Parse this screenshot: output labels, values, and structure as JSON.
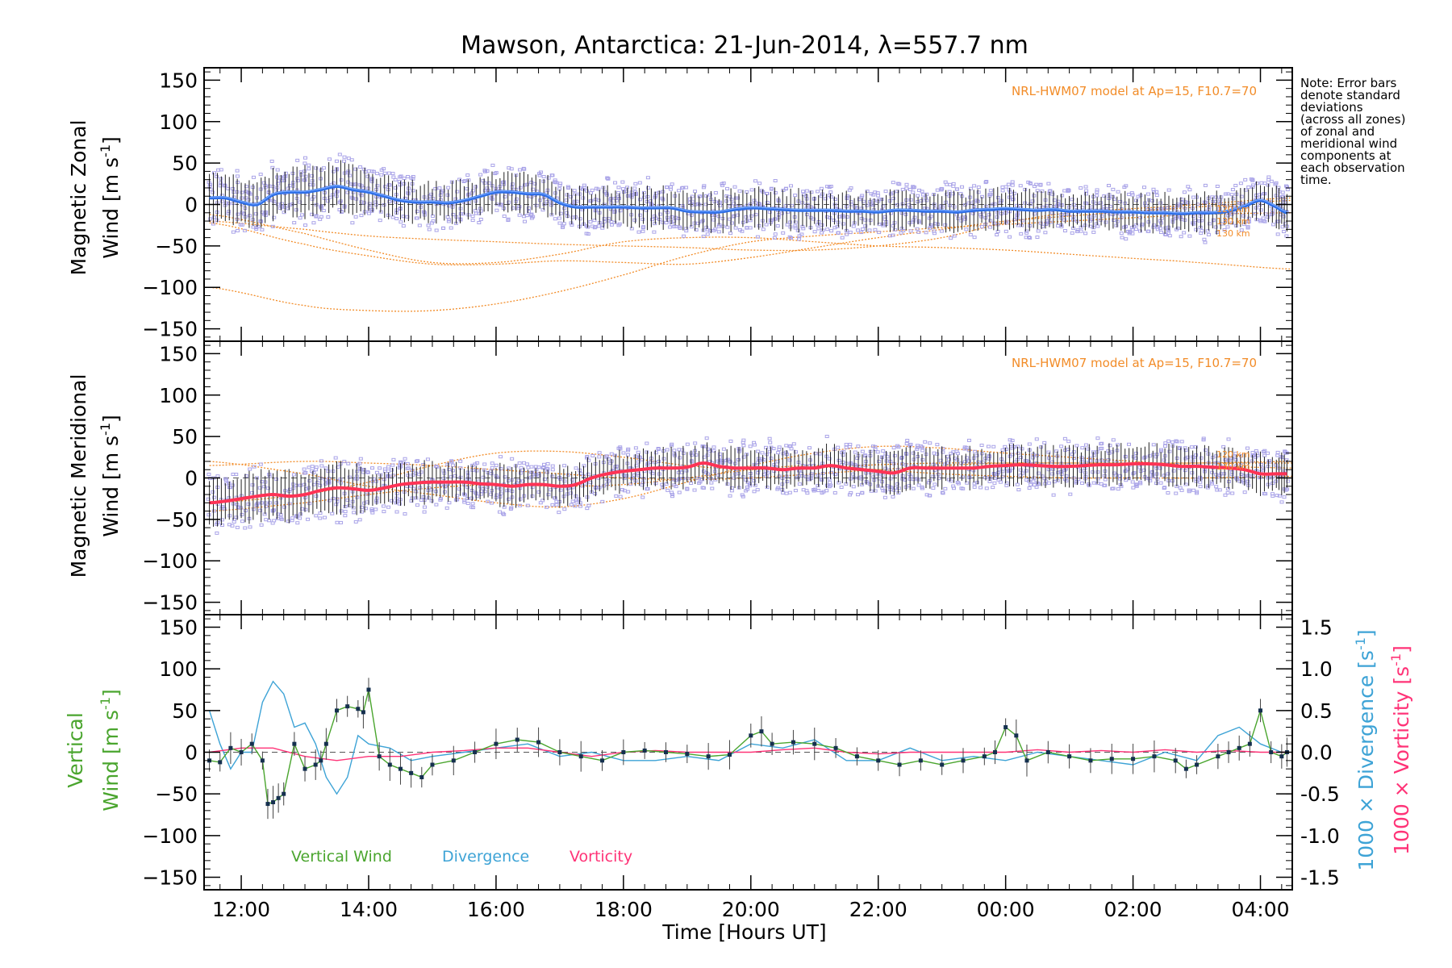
{
  "colors": {
    "zonal": "#2f6fe8",
    "zonal_light": "#7aa9ff",
    "meridional": "#ff3355",
    "model": "#f28c28",
    "scatter": "#a9a3e8",
    "vertical": "#4aa52e",
    "divergence": "#3da3d6",
    "vorticity": "#ff3377",
    "marker": "#15304f"
  },
  "chart_data": [
    {
      "type": "line",
      "title": "Mawson, Antarctica: 21-Jun-2014, λ=557.7 nm",
      "ylabel_line1": "Magnetic Zonal",
      "ylabel_line2": "Wind [m s",
      "ylabel_sup": "-1",
      "ylabel_close": "]",
      "ylim": [
        -165,
        165
      ],
      "yticks": [
        150,
        100,
        50,
        0,
        -50,
        -100,
        -150
      ],
      "xlim": [
        "2014-06-21T11:25",
        "2014-06-22T04:30"
      ],
      "model_label": "NRL-HWM07 model at Ap=15, F10.7=70",
      "altitude_labels": [
        "120 km",
        "130 km",
        "130 km"
      ],
      "series": [
        {
          "role": "mean_wind",
          "x": [
            "11:30",
            "11:45",
            "12:00",
            "12:15",
            "12:30",
            "12:45",
            "13:00",
            "13:15",
            "13:30",
            "13:45",
            "14:00",
            "14:15",
            "14:30",
            "14:45",
            "15:00",
            "15:15",
            "15:30",
            "15:45",
            "16:00",
            "16:15",
            "16:30",
            "16:45",
            "17:00",
            "17:15",
            "17:30",
            "17:45",
            "18:00",
            "18:15",
            "18:30",
            "18:45",
            "19:00",
            "19:15",
            "19:30",
            "19:45",
            "20:00",
            "20:15",
            "20:30",
            "20:45",
            "21:00",
            "21:15",
            "21:30",
            "21:45",
            "22:00",
            "22:15",
            "22:30",
            "22:45",
            "23:00",
            "23:15",
            "23:30",
            "23:45",
            "00:00",
            "00:15",
            "00:30",
            "00:45",
            "01:00",
            "01:15",
            "01:30",
            "01:45",
            "02:00",
            "02:15",
            "02:30",
            "02:45",
            "03:00",
            "03:15",
            "03:30",
            "03:45",
            "04:00",
            "04:15",
            "04:25"
          ],
          "y": [
            8,
            8,
            3,
            0,
            12,
            15,
            15,
            18,
            22,
            18,
            15,
            10,
            5,
            3,
            3,
            2,
            5,
            10,
            15,
            15,
            13,
            12,
            2,
            -3,
            -3,
            -3,
            -3,
            -4,
            -4,
            -4,
            -8,
            -9,
            -9,
            -6,
            -4,
            -5,
            -6,
            -7,
            -7,
            -7,
            -8,
            -8,
            -9,
            -7,
            -7,
            -8,
            -8,
            -9,
            -7,
            -6,
            -5,
            -6,
            -7,
            -6,
            -8,
            -8,
            -8,
            -9,
            -9,
            -10,
            -10,
            -11,
            -10,
            -10,
            -8,
            -2,
            5,
            -3,
            -10
          ]
        },
        {
          "role": "model_curves",
          "x": [
            "11:30",
            "13:00",
            "14:00",
            "15:00",
            "16:00",
            "17:00",
            "18:00",
            "19:00",
            "20:00",
            "21:00",
            "22:00",
            "23:00",
            "00:00",
            "01:00",
            "02:00",
            "03:00",
            "04:30"
          ],
          "curves": [
            {
              "y": [
                -20,
                -30,
                -38,
                -42,
                -45,
                -48,
                -50,
                -52,
                -55,
                -55,
                -50,
                -40,
                -22,
                -10,
                -5,
                0,
                8
              ]
            },
            {
              "y": [
                -12,
                -35,
                -55,
                -70,
                -70,
                -60,
                -45,
                -40,
                -40,
                -45,
                -50,
                -52,
                -55,
                -60,
                -65,
                -70,
                -78
              ]
            },
            {
              "y": [
                -22,
                -48,
                -62,
                -72,
                -72,
                -68,
                -70,
                -72,
                -64,
                -52,
                -40,
                -30,
                -20,
                -14,
                -8,
                -3,
                5
              ]
            },
            {
              "y": [
                -100,
                -122,
                -128,
                -128,
                -120,
                -105,
                -85,
                -62,
                -45,
                -38,
                -33,
                -28,
                -24,
                -20,
                -16,
                -12,
                -10
              ]
            }
          ]
        }
      ]
    },
    {
      "type": "line",
      "ylabel_line1": "Magnetic Meridional",
      "ylabel_line2": "Wind [m s",
      "ylabel_sup": "-1",
      "ylabel_close": "]",
      "ylim": [
        -165,
        165
      ],
      "yticks": [
        150,
        100,
        50,
        0,
        -50,
        -100,
        -150
      ],
      "model_label": "NRL-HWM07 model at Ap=15, F10.7=70",
      "altitude_labels": [
        "120 km",
        "130 km"
      ],
      "series": [
        {
          "role": "mean_wind",
          "x": [
            "11:30",
            "11:45",
            "12:00",
            "12:15",
            "12:30",
            "12:45",
            "13:00",
            "13:15",
            "13:30",
            "13:45",
            "14:00",
            "14:15",
            "14:30",
            "14:45",
            "15:00",
            "15:15",
            "15:30",
            "15:45",
            "16:00",
            "16:15",
            "16:30",
            "16:45",
            "17:00",
            "17:15",
            "17:30",
            "17:45",
            "18:00",
            "18:15",
            "18:30",
            "18:45",
            "19:00",
            "19:15",
            "19:30",
            "19:45",
            "20:00",
            "20:15",
            "20:30",
            "20:45",
            "21:00",
            "21:15",
            "21:30",
            "21:45",
            "22:00",
            "22:15",
            "22:30",
            "22:45",
            "23:00",
            "23:15",
            "23:30",
            "23:45",
            "00:00",
            "00:15",
            "00:30",
            "00:45",
            "01:00",
            "01:15",
            "01:30",
            "01:45",
            "02:00",
            "02:15",
            "02:30",
            "02:45",
            "03:00",
            "03:15",
            "03:30",
            "03:45",
            "04:00",
            "04:15",
            "04:25"
          ],
          "y": [
            -30,
            -28,
            -25,
            -22,
            -20,
            -22,
            -20,
            -15,
            -12,
            -13,
            -15,
            -12,
            -8,
            -6,
            -5,
            -5,
            -5,
            -7,
            -8,
            -10,
            -8,
            -8,
            -10,
            -8,
            0,
            5,
            8,
            10,
            12,
            12,
            13,
            18,
            14,
            12,
            12,
            12,
            10,
            12,
            12,
            15,
            12,
            10,
            8,
            6,
            12,
            12,
            12,
            12,
            12,
            14,
            15,
            16,
            15,
            14,
            14,
            15,
            16,
            16,
            17,
            17,
            16,
            14,
            14,
            13,
            12,
            10,
            5,
            5,
            5
          ]
        },
        {
          "role": "model_curves",
          "x": [
            "11:30",
            "13:00",
            "14:00",
            "15:00",
            "16:00",
            "17:00",
            "18:00",
            "19:00",
            "20:00",
            "21:00",
            "22:00",
            "23:00",
            "00:00",
            "01:00",
            "02:00",
            "03:00",
            "04:30"
          ],
          "curves": [
            {
              "y": [
                -30,
                -20,
                -5,
                15,
                30,
                32,
                25,
                15,
                10,
                12,
                16,
                18,
                18,
                18,
                18,
                18,
                18
              ]
            },
            {
              "y": [
                15,
                20,
                18,
                15,
                10,
                5,
                0,
                -2,
                0,
                5,
                10,
                15,
                18,
                18,
                18,
                18,
                20
              ]
            },
            {
              "y": [
                20,
                5,
                -10,
                -20,
                -30,
                -35,
                -25,
                -5,
                15,
                30,
                38,
                36,
                30,
                25,
                20,
                15,
                12
              ]
            },
            {
              "y": [
                -40,
                -30,
                -20,
                -12,
                -8,
                -10,
                -8,
                0,
                10,
                15,
                10,
                5,
                2,
                0,
                0,
                0,
                2
              ]
            }
          ]
        }
      ]
    },
    {
      "type": "line",
      "ylabel_line1": "Vertical",
      "ylabel_line2": "Wind [m s",
      "ylabel_sup": "-1",
      "ylabel_close": "]",
      "y2label_main": "1000 × Divergence [s",
      "y2label_sup": "-1",
      "y2label_close": "]",
      "y3label_main": "1000 × Vorticity [s",
      "y3label_sup": "-1",
      "y3label_close": "]",
      "ylim": [
        -165,
        165
      ],
      "y2lim": [
        -1.65,
        1.65
      ],
      "yticks": [
        150,
        100,
        50,
        0,
        -50,
        -100,
        -150
      ],
      "y2ticks": [
        "1.5",
        "1.0",
        "0.5",
        "0.0",
        "-0.5",
        "-1.0",
        "-1.5"
      ],
      "xlabel": "Time [Hours UT]",
      "xticks": [
        "12:00",
        "14:00",
        "16:00",
        "18:00",
        "20:00",
        "22:00",
        "00:00",
        "02:00",
        "04:00"
      ],
      "legend": [
        "Vertical Wind",
        "Divergence",
        "Vorticity"
      ],
      "series": [
        {
          "name": "Vertical Wind",
          "x": [
            "11:30",
            "11:40",
            "11:50",
            "12:00",
            "12:10",
            "12:20",
            "12:25",
            "12:30",
            "12:35",
            "12:40",
            "12:50",
            "13:00",
            "13:10",
            "13:15",
            "13:20",
            "13:30",
            "13:40",
            "13:50",
            "13:55",
            "14:00",
            "14:10",
            "14:20",
            "14:30",
            "14:40",
            "14:50",
            "15:00",
            "15:20",
            "15:40",
            "16:00",
            "16:20",
            "16:40",
            "17:00",
            "17:20",
            "17:40",
            "18:00",
            "18:20",
            "18:40",
            "19:00",
            "19:20",
            "19:40",
            "20:00",
            "20:10",
            "20:20",
            "20:40",
            "21:00",
            "21:20",
            "21:40",
            "22:00",
            "22:20",
            "22:40",
            "23:00",
            "23:20",
            "23:40",
            "23:50",
            "00:00",
            "00:10",
            "00:20",
            "00:40",
            "01:00",
            "01:20",
            "01:40",
            "02:00",
            "02:20",
            "02:40",
            "02:50",
            "03:00",
            "03:20",
            "03:30",
            "03:40",
            "03:50",
            "04:00",
            "04:10",
            "04:20",
            "04:25"
          ],
          "y": [
            -10,
            -12,
            5,
            0,
            10,
            -10,
            -62,
            -60,
            -55,
            -50,
            10,
            -20,
            -15,
            -10,
            10,
            50,
            55,
            52,
            48,
            75,
            -5,
            -15,
            -20,
            -25,
            -30,
            -15,
            -10,
            0,
            10,
            15,
            12,
            0,
            -5,
            -10,
            0,
            2,
            0,
            -2,
            -5,
            -3,
            20,
            25,
            10,
            12,
            10,
            5,
            -5,
            -10,
            -15,
            -10,
            -15,
            -10,
            -5,
            0,
            30,
            20,
            -10,
            0,
            -5,
            -10,
            -8,
            -8,
            -5,
            -10,
            -20,
            -15,
            -5,
            0,
            5,
            10,
            50,
            0,
            -5,
            0
          ]
        },
        {
          "name": "Divergence",
          "x": [
            "11:30",
            "11:40",
            "11:50",
            "12:00",
            "12:10",
            "12:20",
            "12:30",
            "12:40",
            "12:50",
            "13:00",
            "13:10",
            "13:20",
            "13:30",
            "13:40",
            "13:50",
            "14:00",
            "14:20",
            "14:40",
            "15:00",
            "15:30",
            "16:00",
            "16:30",
            "17:00",
            "17:30",
            "18:00",
            "18:30",
            "19:00",
            "19:30",
            "20:00",
            "20:30",
            "21:00",
            "21:30",
            "22:00",
            "22:30",
            "23:00",
            "23:30",
            "00:00",
            "00:30",
            "01:00",
            "01:30",
            "02:00",
            "02:30",
            "03:00",
            "03:20",
            "03:40",
            "04:00",
            "04:20"
          ],
          "y": [
            0.5,
            0.1,
            -0.2,
            0.0,
            0.0,
            0.6,
            0.85,
            0.7,
            0.3,
            0.35,
            0.1,
            -0.3,
            -0.5,
            -0.3,
            0.2,
            0.1,
            0.05,
            -0.1,
            -0.05,
            0.0,
            0.05,
            0.1,
            -0.05,
            0.0,
            -0.1,
            -0.1,
            -0.05,
            -0.1,
            0.1,
            0.05,
            0.15,
            -0.1,
            -0.1,
            0.05,
            -0.1,
            -0.05,
            -0.1,
            0.0,
            -0.05,
            -0.1,
            -0.15,
            0.0,
            -0.1,
            0.2,
            0.3,
            0.1,
            0.0
          ]
        },
        {
          "name": "Vorticity",
          "x": [
            "11:30",
            "12:00",
            "12:30",
            "13:00",
            "13:30",
            "14:00",
            "14:30",
            "15:00",
            "15:30",
            "16:00",
            "16:30",
            "17:00",
            "17:30",
            "18:00",
            "18:30",
            "19:00",
            "19:30",
            "20:00",
            "20:30",
            "21:00",
            "21:30",
            "22:00",
            "22:30",
            "23:00",
            "23:30",
            "00:00",
            "00:30",
            "01:00",
            "01:30",
            "02:00",
            "02:30",
            "03:00",
            "03:30",
            "04:00",
            "04:25"
          ],
          "y": [
            0.0,
            0.05,
            0.05,
            -0.05,
            -0.1,
            -0.05,
            -0.05,
            0.0,
            0.02,
            0.05,
            0.05,
            0.0,
            -0.05,
            0.0,
            0.02,
            0.0,
            0.0,
            0.0,
            0.03,
            0.05,
            0.0,
            -0.02,
            0.0,
            0.0,
            0.0,
            0.0,
            0.03,
            0.0,
            0.02,
            0.0,
            0.03,
            0.0,
            0.02,
            0.0,
            0.0
          ]
        }
      ]
    }
  ],
  "note": [
    "Note: Error bars",
    "denote standard",
    "deviations",
    "(across all zones)",
    "of zonal and",
    "meridional wind",
    "components at",
    "each observation",
    "time."
  ]
}
